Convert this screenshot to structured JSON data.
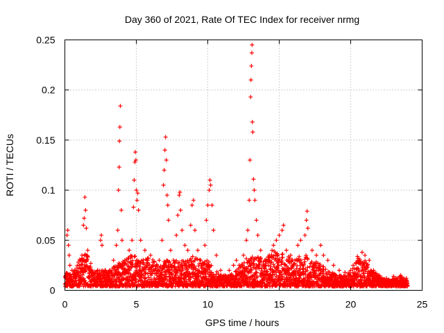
{
  "chart_data": {
    "type": "scatter",
    "title": "Day 360 of 2021, Rate Of TEC Index for receiver nrmg",
    "xlabel": "GPS time / hours",
    "ylabel": "ROTI / TECUs",
    "xlim": [
      0,
      25
    ],
    "ylim": [
      0,
      0.25
    ],
    "x_ticks": [
      0,
      5,
      10,
      15,
      20,
      25
    ],
    "x_tick_labels": [
      "0",
      "5",
      "10",
      "15",
      "20",
      "25"
    ],
    "y_ticks": [
      0,
      0.05,
      0.1,
      0.15,
      0.2,
      0.25
    ],
    "y_tick_labels": [
      "0",
      "0.05",
      "0.1",
      "0.15",
      "0.2",
      "0.25"
    ],
    "grid": true,
    "marker": "+",
    "series": [
      {
        "color": "#ff0000",
        "points": [
          [
            0.1,
            0.012
          ],
          [
            0.15,
            0.055
          ],
          [
            0.2,
            0.06
          ],
          [
            0.25,
            0.045
          ],
          [
            0.3,
            0.035
          ],
          [
            0.35,
            0.025
          ],
          [
            0.5,
            0.02
          ],
          [
            0.7,
            0.015
          ],
          [
            0.9,
            0.018
          ],
          [
            1.0,
            0.025
          ],
          [
            1.1,
            0.03
          ],
          [
            1.2,
            0.035
          ],
          [
            1.3,
            0.065
          ],
          [
            1.35,
            0.072
          ],
          [
            1.4,
            0.093
          ],
          [
            1.45,
            0.08
          ],
          [
            1.5,
            0.062
          ],
          [
            1.6,
            0.04
          ],
          [
            1.8,
            0.02
          ],
          [
            2.0,
            0.015
          ],
          [
            2.3,
            0.02
          ],
          [
            2.5,
            0.05
          ],
          [
            2.55,
            0.055
          ],
          [
            2.6,
            0.045
          ],
          [
            2.8,
            0.02
          ],
          [
            3.0,
            0.015
          ],
          [
            3.2,
            0.018
          ],
          [
            3.4,
            0.03
          ],
          [
            3.6,
            0.045
          ],
          [
            3.7,
            0.06
          ],
          [
            3.75,
            0.1
          ],
          [
            3.8,
            0.123
          ],
          [
            3.82,
            0.149
          ],
          [
            3.85,
            0.163
          ],
          [
            3.88,
            0.184
          ],
          [
            3.95,
            0.08
          ],
          [
            4.0,
            0.05
          ],
          [
            4.2,
            0.03
          ],
          [
            4.5,
            0.04
          ],
          [
            4.7,
            0.05
          ],
          [
            4.8,
            0.083
          ],
          [
            4.85,
            0.11
          ],
          [
            4.9,
            0.128
          ],
          [
            4.93,
            0.138
          ],
          [
            4.97,
            0.13
          ],
          [
            5.0,
            0.1
          ],
          [
            5.05,
            0.09
          ],
          [
            5.1,
            0.097
          ],
          [
            5.15,
            0.08
          ],
          [
            5.3,
            0.05
          ],
          [
            5.6,
            0.04
          ],
          [
            5.8,
            0.03
          ],
          [
            6.0,
            0.035
          ],
          [
            6.3,
            0.02
          ],
          [
            6.6,
            0.03
          ],
          [
            6.8,
            0.05
          ],
          [
            6.9,
            0.105
          ],
          [
            6.95,
            0.12
          ],
          [
            7.0,
            0.14
          ],
          [
            7.05,
            0.153
          ],
          [
            7.1,
            0.13
          ],
          [
            7.15,
            0.095
          ],
          [
            7.2,
            0.085
          ],
          [
            7.25,
            0.07
          ],
          [
            7.4,
            0.04
          ],
          [
            7.6,
            0.03
          ],
          [
            7.8,
            0.055
          ],
          [
            7.9,
            0.075
          ],
          [
            8.0,
            0.095
          ],
          [
            8.05,
            0.098
          ],
          [
            8.1,
            0.08
          ],
          [
            8.2,
            0.06
          ],
          [
            8.4,
            0.045
          ],
          [
            8.6,
            0.04
          ],
          [
            8.8,
            0.065
          ],
          [
            8.9,
            0.085
          ],
          [
            9.0,
            0.09
          ],
          [
            9.1,
            0.06
          ],
          [
            9.3,
            0.04
          ],
          [
            9.5,
            0.03
          ],
          [
            9.8,
            0.045
          ],
          [
            9.9,
            0.07
          ],
          [
            10.0,
            0.085
          ],
          [
            10.1,
            0.1
          ],
          [
            10.15,
            0.11
          ],
          [
            10.2,
            0.105
          ],
          [
            10.3,
            0.085
          ],
          [
            10.4,
            0.06
          ],
          [
            10.6,
            0.035
          ],
          [
            10.9,
            0.02
          ],
          [
            11.2,
            0.015
          ],
          [
            11.5,
            0.02
          ],
          [
            11.8,
            0.025
          ],
          [
            12.0,
            0.03
          ],
          [
            12.2,
            0.025
          ],
          [
            12.5,
            0.035
          ],
          [
            12.7,
            0.05
          ],
          [
            12.8,
            0.06
          ],
          [
            12.9,
            0.09
          ],
          [
            12.95,
            0.13
          ],
          [
            13.0,
            0.193
          ],
          [
            13.02,
            0.21
          ],
          [
            13.05,
            0.224
          ],
          [
            13.08,
            0.237
          ],
          [
            13.1,
            0.245
          ],
          [
            13.12,
            0.168
          ],
          [
            13.15,
            0.158
          ],
          [
            13.2,
            0.111
          ],
          [
            13.25,
            0.1
          ],
          [
            13.3,
            0.09
          ],
          [
            13.4,
            0.07
          ],
          [
            13.5,
            0.055
          ],
          [
            13.7,
            0.04
          ],
          [
            14.0,
            0.03
          ],
          [
            14.3,
            0.035
          ],
          [
            14.6,
            0.045
          ],
          [
            14.8,
            0.05
          ],
          [
            15.0,
            0.055
          ],
          [
            15.2,
            0.06
          ],
          [
            15.3,
            0.065
          ],
          [
            15.5,
            0.04
          ],
          [
            15.8,
            0.035
          ],
          [
            16.1,
            0.03
          ],
          [
            16.3,
            0.045
          ],
          [
            16.5,
            0.05
          ],
          [
            16.8,
            0.055
          ],
          [
            16.9,
            0.07
          ],
          [
            16.95,
            0.079
          ],
          [
            17.0,
            0.062
          ],
          [
            17.3,
            0.04
          ],
          [
            17.6,
            0.035
          ],
          [
            17.9,
            0.045
          ],
          [
            18.1,
            0.035
          ],
          [
            18.4,
            0.03
          ],
          [
            18.8,
            0.025
          ],
          [
            19.2,
            0.02
          ],
          [
            19.6,
            0.018
          ],
          [
            20.0,
            0.02
          ],
          [
            20.5,
            0.03
          ],
          [
            20.8,
            0.038
          ],
          [
            21.0,
            0.035
          ],
          [
            21.3,
            0.03
          ],
          [
            21.6,
            0.02
          ],
          [
            22.0,
            0.015
          ],
          [
            22.5,
            0.012
          ],
          [
            23.0,
            0.014
          ],
          [
            23.5,
            0.015
          ],
          [
            23.9,
            0.012
          ]
        ]
      }
    ],
    "noise_envelope": {
      "x": [
        0,
        0.5,
        1.0,
        1.5,
        2.0,
        2.5,
        3.0,
        3.5,
        4.0,
        4.5,
        5.0,
        5.5,
        6.0,
        6.5,
        7.0,
        7.5,
        8.0,
        8.5,
        9.0,
        9.5,
        10.0,
        10.5,
        11.0,
        11.5,
        12.0,
        12.5,
        13.0,
        13.5,
        14.0,
        14.5,
        15.0,
        15.5,
        16.0,
        16.5,
        17.0,
        17.5,
        18.0,
        18.5,
        19.0,
        19.5,
        20.0,
        20.5,
        21.0,
        21.5,
        22.0,
        22.5,
        23.0,
        23.5,
        24.0
      ],
      "max_y": [
        0.02,
        0.015,
        0.03,
        0.04,
        0.02,
        0.02,
        0.02,
        0.025,
        0.03,
        0.035,
        0.035,
        0.03,
        0.035,
        0.025,
        0.03,
        0.03,
        0.03,
        0.03,
        0.035,
        0.03,
        0.03,
        0.02,
        0.015,
        0.015,
        0.02,
        0.03,
        0.035,
        0.035,
        0.03,
        0.04,
        0.04,
        0.035,
        0.03,
        0.035,
        0.035,
        0.03,
        0.025,
        0.02,
        0.015,
        0.015,
        0.02,
        0.035,
        0.03,
        0.02,
        0.015,
        0.01,
        0.012,
        0.015,
        0.01
      ]
    }
  }
}
